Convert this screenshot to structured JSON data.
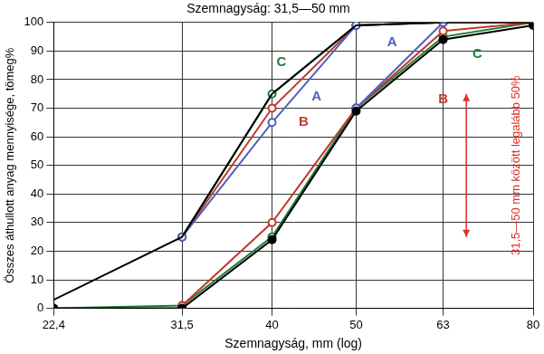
{
  "chart_data": {
    "type": "line",
    "title": "Szemnagyság: 31,5—50 mm",
    "x_label": "Szemnagyság, mm (log)",
    "y_label": "Összes áthullott anyag mennyisége, tömeg%",
    "log": "x",
    "grid": true,
    "xlim": [
      22.4,
      80
    ],
    "xticks": [
      {
        "value": 22.4,
        "label": "22,4"
      },
      {
        "value": 31.5,
        "label": "31,5"
      },
      40,
      50,
      63,
      80
    ],
    "ylim": [
      0,
      100
    ],
    "yticks": [
      0,
      10,
      20,
      30,
      40,
      50,
      60,
      70,
      80,
      90,
      100
    ],
    "series": [
      {
        "color": "#000000",
        "marker": "none",
        "line_style": "solid",
        "x": [
          22.4,
          31.5,
          40,
          50,
          63,
          80
        ],
        "values": [
          3,
          25,
          75,
          99,
          100,
          100
        ]
      },
      {
        "color": "#000000",
        "marker": "filled_circle",
        "line_style": "solid",
        "x": [
          22.4,
          31.5,
          40,
          50,
          63,
          80
        ],
        "values": [
          0,
          0,
          24,
          69,
          94,
          99
        ]
      },
      {
        "color": "#4f5fbf",
        "marker": "open_circle",
        "line_style": "solid",
        "x": [
          31.5,
          40,
          50,
          63
        ],
        "values": [
          25,
          65,
          99,
          100
        ]
      },
      {
        "color": "#4f5fbf",
        "marker": "open_circle",
        "line_style": "solid",
        "x": [
          50,
          63
        ],
        "values": [
          70,
          100
        ]
      },
      {
        "color": "#c0392b",
        "marker": "open_circle",
        "line_style": "solid",
        "x": [
          31.5,
          40,
          50,
          63,
          80
        ],
        "values": [
          25,
          70,
          99,
          100,
          100
        ]
      },
      {
        "color": "#c0392b",
        "marker": "open_circle",
        "line_style": "solid",
        "x": [
          31.5,
          40,
          50,
          63,
          80
        ],
        "values": [
          1,
          30,
          70,
          97,
          100
        ]
      },
      {
        "color": "#1e7b3a",
        "marker": "open_circle",
        "line_style": "solid",
        "x": [
          31.5,
          40,
          50,
          63,
          80
        ],
        "values": [
          25,
          75,
          99,
          100,
          100
        ]
      },
      {
        "color": "#1e7b3a",
        "marker": "open_circle",
        "line_style": "solid",
        "x": [
          22.4,
          31.5,
          40,
          50,
          63,
          80
        ],
        "values": [
          0,
          1,
          25,
          70,
          95,
          100
        ]
      }
    ],
    "annotations": [
      {
        "text": "C",
        "x": 41,
        "y": 86,
        "color": "#1e7b3a"
      },
      {
        "text": "A",
        "x": 45,
        "y": 74,
        "color": "#4f5fbf"
      },
      {
        "text": "B",
        "x": 43.5,
        "y": 65,
        "color": "#c0392b"
      },
      {
        "text": "A",
        "x": 55,
        "y": 93,
        "color": "#4f5fbf"
      },
      {
        "text": "B",
        "x": 63,
        "y": 73,
        "color": "#c0392b"
      },
      {
        "text": "C",
        "x": 69,
        "y": 89,
        "color": "#1e7b3a"
      },
      {
        "text": "31,5—50 mm között legalább 50%",
        "x": 76.5,
        "y": 50,
        "color": "#e0302a",
        "rotated": true,
        "arrow": {
          "x": 67,
          "y": [
            25,
            75
          ]
        }
      }
    ]
  }
}
